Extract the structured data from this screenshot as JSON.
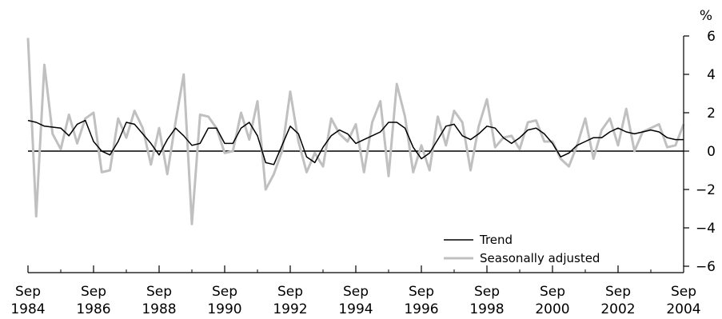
{
  "chart_data": {
    "type": "line",
    "y_unit": "%",
    "ylim": [
      -6,
      6
    ],
    "y_ticks": [
      "6",
      "4",
      "2",
      "0",
      "−2",
      "−4",
      "−6"
    ],
    "y_tick_values": [
      6,
      4,
      2,
      0,
      -2,
      -4,
      -6
    ],
    "x_range": [
      "1984-09",
      "2004-09"
    ],
    "x_ticks": [
      {
        "month": "Sep",
        "year": "1984",
        "date": "1984-09"
      },
      {
        "month": "Sep",
        "year": "1986",
        "date": "1986-09"
      },
      {
        "month": "Sep",
        "year": "1988",
        "date": "1988-09"
      },
      {
        "month": "Sep",
        "year": "1990",
        "date": "1990-09"
      },
      {
        "month": "Sep",
        "year": "1992",
        "date": "1992-09"
      },
      {
        "month": "Sep",
        "year": "1994",
        "date": "1994-09"
      },
      {
        "month": "Sep",
        "year": "1996",
        "date": "1996-09"
      },
      {
        "month": "Sep",
        "year": "1998",
        "date": "1998-09"
      },
      {
        "month": "Sep",
        "year": "2000",
        "date": "2000-09"
      },
      {
        "month": "Sep",
        "year": "2002",
        "date": "2002-09"
      },
      {
        "month": "Sep",
        "year": "2004",
        "date": "2004-09"
      }
    ],
    "zero_line": true,
    "grid": false,
    "legend_position": "bottom-right",
    "x": [
      "1984-09",
      "1984-12",
      "1985-03",
      "1985-06",
      "1985-09",
      "1985-12",
      "1986-03",
      "1986-06",
      "1986-09",
      "1986-12",
      "1987-03",
      "1987-06",
      "1987-09",
      "1987-12",
      "1988-03",
      "1988-06",
      "1988-09",
      "1988-12",
      "1989-03",
      "1989-06",
      "1989-09",
      "1989-12",
      "1990-03",
      "1990-06",
      "1990-09",
      "1990-12",
      "1991-03",
      "1991-06",
      "1991-09",
      "1991-12",
      "1992-03",
      "1992-06",
      "1992-09",
      "1992-12",
      "1993-03",
      "1993-06",
      "1993-09",
      "1993-12",
      "1994-03",
      "1994-06",
      "1994-09",
      "1994-12",
      "1995-03",
      "1995-06",
      "1995-09",
      "1995-12",
      "1996-03",
      "1996-06",
      "1996-09",
      "1996-12",
      "1997-03",
      "1997-06",
      "1997-09",
      "1997-12",
      "1998-03",
      "1998-06",
      "1998-09",
      "1998-12",
      "1999-03",
      "1999-06",
      "1999-09",
      "1999-12",
      "2000-03",
      "2000-06",
      "2000-09",
      "2000-12",
      "2001-03",
      "2001-06",
      "2001-09",
      "2001-12",
      "2002-03",
      "2002-06",
      "2002-09",
      "2002-12",
      "2003-03",
      "2003-06",
      "2003-09",
      "2003-12",
      "2004-03",
      "2004-06",
      "2004-09"
    ],
    "series": [
      {
        "name": "Trend",
        "color": "#000000",
        "values": [
          1.6,
          1.5,
          1.3,
          1.25,
          1.2,
          0.8,
          1.4,
          1.6,
          0.5,
          0.0,
          -0.2,
          0.5,
          1.5,
          1.4,
          0.9,
          0.4,
          -0.2,
          0.6,
          1.2,
          0.8,
          0.3,
          0.4,
          1.2,
          1.2,
          0.4,
          0.4,
          1.2,
          1.5,
          0.8,
          -0.6,
          -0.7,
          0.3,
          1.3,
          0.9,
          -0.3,
          -0.6,
          0.2,
          0.8,
          1.1,
          0.9,
          0.4,
          0.6,
          0.8,
          1.0,
          1.5,
          1.5,
          1.2,
          0.2,
          -0.4,
          -0.1,
          0.6,
          1.3,
          1.4,
          0.8,
          0.6,
          0.9,
          1.3,
          1.2,
          0.7,
          0.4,
          0.7,
          1.1,
          1.2,
          0.9,
          0.4,
          -0.3,
          -0.1,
          0.3,
          0.5,
          0.7,
          0.7,
          1.0,
          1.2,
          1.0,
          0.9,
          1.0,
          1.1,
          1.0,
          0.7,
          0.6,
          0.6
        ]
      },
      {
        "name": "Seasonally adjusted",
        "color": "#c0c0c0",
        "values": [
          5.9,
          -3.4,
          4.5,
          0.9,
          0.1,
          1.9,
          0.4,
          1.7,
          2.0,
          -1.1,
          -1.0,
          1.7,
          0.7,
          2.1,
          1.2,
          -0.7,
          1.2,
          -1.2,
          1.5,
          4.0,
          -3.8,
          1.9,
          1.8,
          1.2,
          -0.1,
          0.0,
          2.0,
          0.6,
          2.6,
          -2.0,
          -1.2,
          0.0,
          3.1,
          0.5,
          -1.1,
          -0.1,
          -0.8,
          1.7,
          0.9,
          0.5,
          1.4,
          -1.1,
          1.5,
          2.6,
          -1.3,
          3.5,
          1.8,
          -1.1,
          0.3,
          -1.0,
          1.8,
          0.3,
          2.1,
          1.5,
          -1.0,
          1.3,
          2.7,
          0.2,
          0.7,
          0.8,
          0.1,
          1.5,
          1.6,
          0.5,
          0.5,
          -0.4,
          -0.8,
          0.3,
          1.7,
          -0.4,
          1.1,
          1.7,
          0.3,
          2.2,
          0.0,
          1.0,
          1.2,
          1.4,
          0.2,
          0.3,
          1.4
        ]
      }
    ]
  }
}
